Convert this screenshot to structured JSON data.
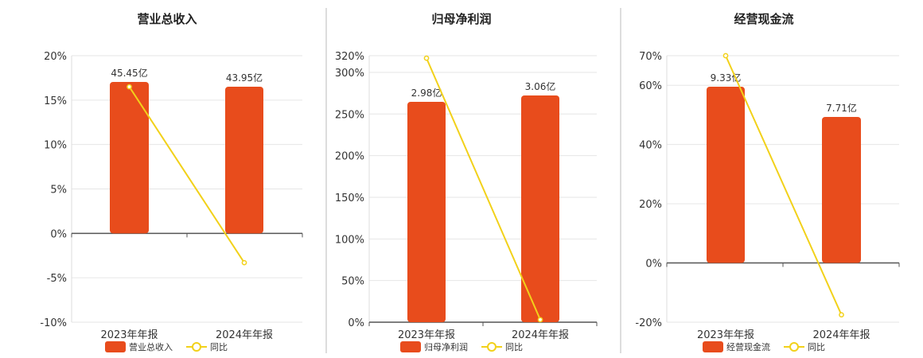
{
  "colors": {
    "bar": "#e84c1c",
    "line": "#f2d11a",
    "grid": "#e6e6e6",
    "axis": "#555555",
    "divider": "#bbbbbb"
  },
  "chart_data": [
    {
      "type": "bar",
      "title": "营业总收入",
      "categories": [
        "2023年年报",
        "2024年年报"
      ],
      "ylim": [
        -10,
        20
      ],
      "yticks": [
        -10,
        -5,
        0,
        5,
        10,
        15,
        20
      ],
      "grid": true,
      "legend": "bottom",
      "series": [
        {
          "name": "营业总收入",
          "type": "bar",
          "axis": "right",
          "values": [
            45.45,
            43.95
          ],
          "labels": [
            "45.45亿",
            "43.95亿"
          ]
        },
        {
          "name": "同比",
          "type": "line",
          "axis": "left",
          "values": [
            16.5,
            -3.3
          ]
        }
      ]
    },
    {
      "type": "bar",
      "title": "归母净利润",
      "categories": [
        "2023年年报",
        "2024年年报"
      ],
      "ylim": [
        0,
        320
      ],
      "yticks": [
        0,
        50,
        100,
        150,
        200,
        250,
        300,
        320
      ],
      "grid": true,
      "legend": "bottom",
      "series": [
        {
          "name": "归母净利润",
          "type": "bar",
          "axis": "right",
          "values": [
            2.98,
            3.06
          ],
          "labels": [
            "2.98亿",
            "3.06亿"
          ]
        },
        {
          "name": "同比",
          "type": "line",
          "axis": "left",
          "values": [
            317,
            3
          ]
        }
      ]
    },
    {
      "type": "bar",
      "title": "经营现金流",
      "categories": [
        "2023年年报",
        "2024年年报"
      ],
      "ylim": [
        -20,
        70
      ],
      "yticks": [
        -20,
        0,
        20,
        40,
        60,
        70
      ],
      "grid": true,
      "legend": "bottom",
      "series": [
        {
          "name": "经营现金流",
          "type": "bar",
          "axis": "right",
          "values": [
            9.33,
            7.71
          ],
          "labels": [
            "9.33亿",
            "7.71亿"
          ]
        },
        {
          "name": "同比",
          "type": "line",
          "axis": "left",
          "values": [
            70,
            -17.5
          ]
        }
      ]
    }
  ]
}
